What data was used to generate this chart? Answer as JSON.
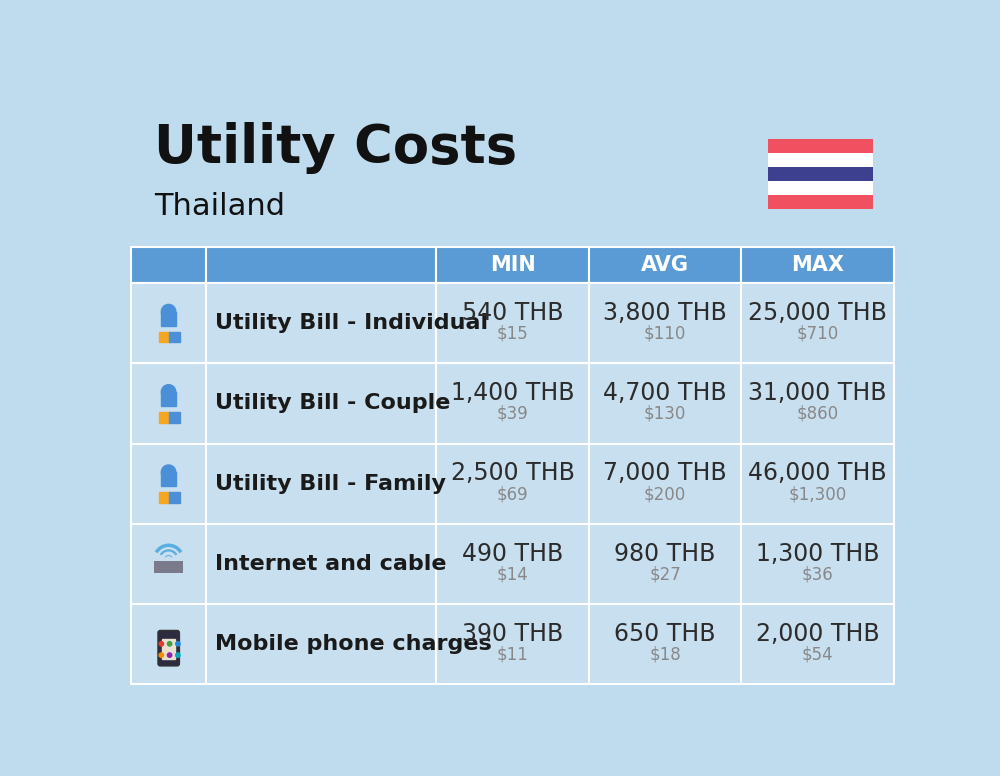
{
  "title": "Utility Costs",
  "subtitle": "Thailand",
  "background_color": "#BFDBEE",
  "header_bg_color": "#5B9BD5",
  "header_text_color": "#FFFFFF",
  "row_bg_color": "#C8DFF0",
  "cell_border_color": "#FFFFFF",
  "columns": [
    "MIN",
    "AVG",
    "MAX"
  ],
  "rows": [
    {
      "label": "Utility Bill - Individual",
      "min_thb": "540 THB",
      "min_usd": "$15",
      "avg_thb": "3,800 THB",
      "avg_usd": "$110",
      "max_thb": "25,000 THB",
      "max_usd": "$710"
    },
    {
      "label": "Utility Bill - Couple",
      "min_thb": "1,400 THB",
      "min_usd": "$39",
      "avg_thb": "4,700 THB",
      "avg_usd": "$130",
      "max_thb": "31,000 THB",
      "max_usd": "$860"
    },
    {
      "label": "Utility Bill - Family",
      "min_thb": "2,500 THB",
      "min_usd": "$69",
      "avg_thb": "7,000 THB",
      "avg_usd": "$200",
      "max_thb": "46,000 THB",
      "max_usd": "$1,300"
    },
    {
      "label": "Internet and cable",
      "min_thb": "490 THB",
      "min_usd": "$14",
      "avg_thb": "980 THB",
      "avg_usd": "$27",
      "max_thb": "1,300 THB",
      "max_usd": "$36"
    },
    {
      "label": "Mobile phone charges",
      "min_thb": "390 THB",
      "min_usd": "$11",
      "avg_thb": "650 THB",
      "avg_usd": "$18",
      "max_thb": "2,000 THB",
      "max_usd": "$54"
    }
  ],
  "thb_fontsize": 17,
  "usd_fontsize": 12,
  "label_fontsize": 16,
  "header_fontsize": 15,
  "title_fontsize": 38,
  "subtitle_fontsize": 22,
  "flag_red": "#F05060",
  "flag_blue": "#3D3F8F",
  "flag_white": "#FFFFFF",
  "thb_color": "#2C2C2C",
  "usd_color": "#888888",
  "label_color": "#1A1A1A",
  "title_color": "#111111",
  "subtitle_color": "#111111"
}
